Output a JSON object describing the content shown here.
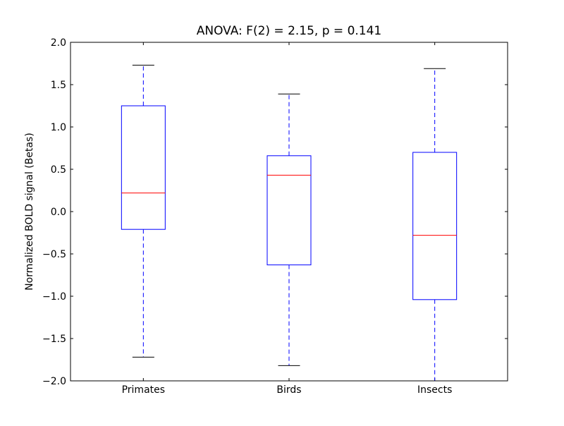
{
  "chart_data": {
    "type": "box",
    "title": "ANOVA: F(2) = 2.15, p = 0.141",
    "xlabel": "",
    "ylabel": "Normalized BOLD signal (Betas)",
    "ylim": [
      -2.0,
      2.0
    ],
    "yticks": [
      "−2.0",
      "−1.5",
      "−1.0",
      "−0.5",
      "0.0",
      "0.5",
      "1.0",
      "1.5",
      "2.0"
    ],
    "ytick_values": [
      -2.0,
      -1.5,
      -1.0,
      -0.5,
      0.0,
      0.5,
      1.0,
      1.5,
      2.0
    ],
    "categories": [
      "Primates",
      "Birds",
      "Insects"
    ],
    "boxes": [
      {
        "whisker_low": -1.72,
        "q1": -0.21,
        "median": 0.22,
        "q3": 1.25,
        "whisker_high": 1.73
      },
      {
        "whisker_low": -1.82,
        "q1": -0.63,
        "median": 0.43,
        "q3": 0.66,
        "whisker_high": 1.39
      },
      {
        "whisker_low": -2.1,
        "q1": -1.04,
        "median": -0.28,
        "q3": 0.7,
        "whisker_high": 1.69
      }
    ],
    "grid": false,
    "colors": {
      "box": "#0000ff",
      "median": "#ff0000",
      "cap": "#000000"
    }
  }
}
